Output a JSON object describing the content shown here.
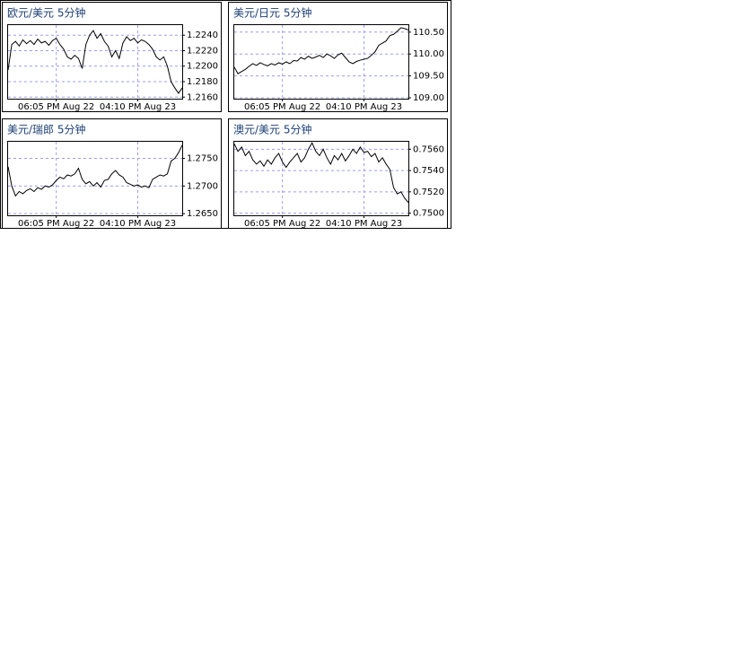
{
  "chart_data": [
    {
      "type": "line",
      "title": "欧元/美元 5分钟",
      "color": "#000000",
      "grid": true,
      "categories": [
        null,
        null,
        null,
        null,
        null,
        null,
        null,
        null,
        null,
        null,
        null,
        null,
        null,
        "06:05 PM Aug 22",
        null,
        null,
        null,
        null,
        null,
        null,
        null,
        null,
        null,
        null,
        null,
        null,
        null,
        null,
        null,
        null,
        null,
        null,
        null,
        null,
        null,
        "04:10 PM Aug 23",
        null,
        null,
        null,
        null,
        null,
        null,
        null,
        null,
        null,
        null,
        null,
        null
      ],
      "values": [
        1.2195,
        1.2228,
        1.2232,
        1.2226,
        1.2234,
        1.2229,
        1.2233,
        1.2228,
        1.2235,
        1.223,
        1.2232,
        1.2227,
        1.2233,
        1.2236,
        1.2228,
        1.2222,
        1.2212,
        1.2209,
        1.2214,
        1.221,
        1.2197,
        1.2228,
        1.224,
        1.2246,
        1.2236,
        1.2242,
        1.2232,
        1.2226,
        1.2212,
        1.222,
        1.221,
        1.223,
        1.2238,
        1.2233,
        1.2236,
        1.223,
        1.2234,
        1.2232,
        1.2228,
        1.2222,
        1.2212,
        1.2208,
        1.2212,
        1.22,
        1.218,
        1.2172,
        1.2165,
        1.2172
      ],
      "ylim": [
        1.2158,
        1.2253
      ],
      "yticks": [
        {
          "value": 1.224,
          "label": "1.2240"
        },
        {
          "value": 1.222,
          "label": "1.2220"
        },
        {
          "value": 1.22,
          "label": "1.2200"
        },
        {
          "value": 1.218,
          "label": "1.2180"
        },
        {
          "value": 1.216,
          "label": "1.2160"
        }
      ]
    },
    {
      "type": "line",
      "title": "美元/日元 5分钟",
      "color": "#000000",
      "grid": true,
      "categories": [
        null,
        null,
        null,
        null,
        null,
        null,
        null,
        null,
        null,
        null,
        null,
        null,
        null,
        "06:05 PM Aug 22",
        null,
        null,
        null,
        null,
        null,
        null,
        null,
        null,
        null,
        null,
        null,
        null,
        null,
        null,
        null,
        null,
        null,
        null,
        null,
        null,
        null,
        "04:10 PM Aug 23",
        null,
        null,
        null,
        null,
        null,
        null,
        null,
        null,
        null,
        null,
        null,
        null
      ],
      "values": [
        109.7,
        109.55,
        109.6,
        109.65,
        109.72,
        109.78,
        109.74,
        109.8,
        109.76,
        109.73,
        109.78,
        109.75,
        109.8,
        109.77,
        109.82,
        109.78,
        109.85,
        109.84,
        109.92,
        109.88,
        109.95,
        109.9,
        109.93,
        109.97,
        109.92,
        110.0,
        109.96,
        109.9,
        109.98,
        110.02,
        109.92,
        109.82,
        109.78,
        109.83,
        109.86,
        109.88,
        109.9,
        109.97,
        110.05,
        110.2,
        110.25,
        110.3,
        110.42,
        110.45,
        110.52,
        110.6,
        110.58,
        110.55
      ],
      "ylim": [
        108.98,
        110.66
      ],
      "yticks": [
        {
          "value": 110.5,
          "label": "110.50"
        },
        {
          "value": 110,
          "label": "110.00"
        },
        {
          "value": 109.5,
          "label": "109.50"
        },
        {
          "value": 109,
          "label": "109.00"
        }
      ]
    },
    {
      "type": "line",
      "title": "美元/瑞郎 5分钟",
      "color": "#000000",
      "grid": true,
      "categories": [
        null,
        null,
        null,
        null,
        null,
        null,
        null,
        null,
        null,
        null,
        null,
        null,
        null,
        "06:05 PM Aug 22",
        null,
        null,
        null,
        null,
        null,
        null,
        null,
        null,
        null,
        null,
        null,
        null,
        null,
        null,
        null,
        null,
        null,
        null,
        null,
        null,
        null,
        "04:10 PM Aug 23",
        null,
        null,
        null,
        null,
        null,
        null,
        null,
        null,
        null,
        null,
        null,
        null
      ],
      "values": [
        1.2735,
        1.27,
        1.2682,
        1.269,
        1.2686,
        1.2692,
        1.2695,
        1.269,
        1.2697,
        1.2694,
        1.27,
        1.2698,
        1.2702,
        1.271,
        1.2716,
        1.2713,
        1.272,
        1.2718,
        1.2722,
        1.2732,
        1.2712,
        1.2704,
        1.2708,
        1.27,
        1.2706,
        1.2698,
        1.271,
        1.2712,
        1.2722,
        1.2728,
        1.272,
        1.2716,
        1.2706,
        1.2703,
        1.27,
        1.2702,
        1.2698,
        1.27,
        1.2697,
        1.2712,
        1.2716,
        1.272,
        1.2718,
        1.2722,
        1.2745,
        1.275,
        1.276,
        1.2774
      ],
      "ylim": [
        1.2647,
        1.278
      ],
      "yticks": [
        {
          "value": 1.275,
          "label": "1.2750"
        },
        {
          "value": 1.27,
          "label": "1.2700"
        },
        {
          "value": 1.265,
          "label": "1.2650"
        }
      ]
    },
    {
      "type": "line",
      "title": "澳元/美元 5分钟",
      "color": "#000000",
      "grid": true,
      "categories": [
        null,
        null,
        null,
        null,
        null,
        null,
        null,
        null,
        null,
        null,
        null,
        null,
        null,
        "06:05 PM Aug 22",
        null,
        null,
        null,
        null,
        null,
        null,
        null,
        null,
        null,
        null,
        null,
        null,
        null,
        null,
        null,
        null,
        null,
        null,
        null,
        null,
        null,
        "04:10 PM Aug 23",
        null,
        null,
        null,
        null,
        null,
        null,
        null,
        null,
        null,
        null,
        null,
        null
      ],
      "values": [
        0.7565,
        0.7558,
        0.7562,
        0.7554,
        0.7558,
        0.755,
        0.7546,
        0.7549,
        0.7544,
        0.755,
        0.7546,
        0.7552,
        0.7556,
        0.7548,
        0.7543,
        0.7548,
        0.7552,
        0.7556,
        0.7548,
        0.7552,
        0.756,
        0.7566,
        0.7558,
        0.7554,
        0.756,
        0.7552,
        0.7546,
        0.7554,
        0.755,
        0.7556,
        0.7549,
        0.7554,
        0.756,
        0.7556,
        0.7562,
        0.7557,
        0.7558,
        0.7553,
        0.7556,
        0.7548,
        0.7552,
        0.7546,
        0.7541,
        0.7524,
        0.7518,
        0.752,
        0.7514,
        0.751
      ],
      "ylim": [
        0.7498,
        0.7567
      ],
      "yticks": [
        {
          "value": 0.756,
          "label": "0.7560"
        },
        {
          "value": 0.754,
          "label": "0.7540"
        },
        {
          "value": 0.752,
          "label": "0.7520"
        },
        {
          "value": 0.75,
          "label": "0.7500"
        }
      ]
    }
  ]
}
